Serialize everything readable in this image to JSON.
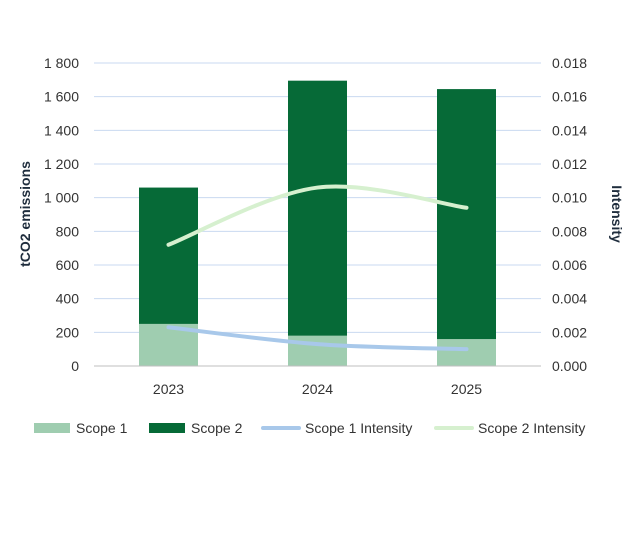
{
  "chart_data": {
    "type": "bar",
    "categories": [
      "2023",
      "2024",
      "2025"
    ],
    "series": [
      {
        "name": "Scope 1",
        "kind": "bar",
        "axis": "left",
        "color": "#9fcdb0",
        "values": [
          250,
          180,
          160
        ]
      },
      {
        "name": "Scope 2",
        "kind": "bar",
        "axis": "left",
        "color": "#066a37",
        "values": [
          810,
          1515,
          1485
        ]
      },
      {
        "name": "Scope 1 Intensity",
        "kind": "line",
        "axis": "right",
        "color": "#a8c8ea",
        "values": [
          0.0023,
          0.0013,
          0.001
        ]
      },
      {
        "name": "Scope 2 Intensity",
        "kind": "line",
        "axis": "right",
        "color": "#d6f0cf",
        "values": [
          0.0072,
          0.0106,
          0.0094
        ]
      }
    ],
    "stacked": true,
    "ylabel": "tCO2 emissions",
    "ylabel_right": "Intensity",
    "ylim": [
      0,
      1800
    ],
    "ylim_right": [
      0,
      0.018
    ],
    "y_ticks": [
      "0",
      "200",
      "400",
      "600",
      "800",
      "1 000",
      "1 200",
      "1 400",
      "1 600",
      "1 800"
    ],
    "y_ticks_right": [
      "0.000",
      "0.002",
      "0.004",
      "0.006",
      "0.008",
      "0.010",
      "0.012",
      "0.014",
      "0.016",
      "0.018"
    ],
    "grid": true,
    "legend_position": "bottom"
  }
}
